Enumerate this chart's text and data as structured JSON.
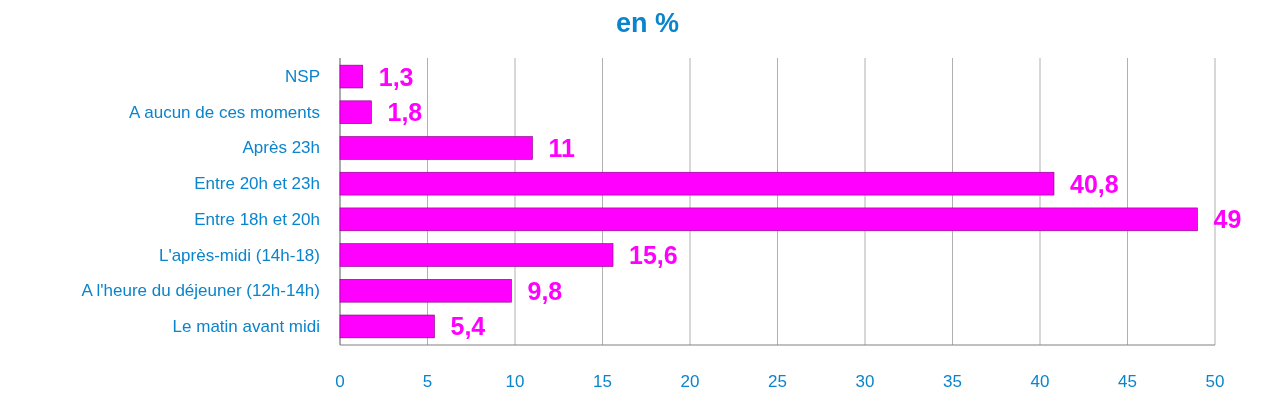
{
  "chart_data": {
    "type": "bar",
    "orientation": "horizontal",
    "title": "en %",
    "categories": [
      "NSP",
      "A aucun de ces moments",
      "Après 23h",
      "Entre 20h et 23h",
      "Entre 18h et 20h",
      "L'après-midi (14h-18)",
      "A l'heure du déjeuner (12h-14h)",
      "Le matin avant midi"
    ],
    "values": [
      1.3,
      1.8,
      11,
      40.8,
      49,
      15.6,
      9.8,
      5.4
    ],
    "value_labels": [
      "1,3",
      "1,8",
      "11",
      "40,8",
      "49",
      "15,6",
      "9,8",
      "5,4"
    ],
    "color": "#ff00ff",
    "xlim": [
      0,
      50
    ],
    "xticks": [
      0,
      5,
      10,
      15,
      20,
      25,
      30,
      35,
      40,
      45,
      50
    ],
    "grid": "x"
  }
}
